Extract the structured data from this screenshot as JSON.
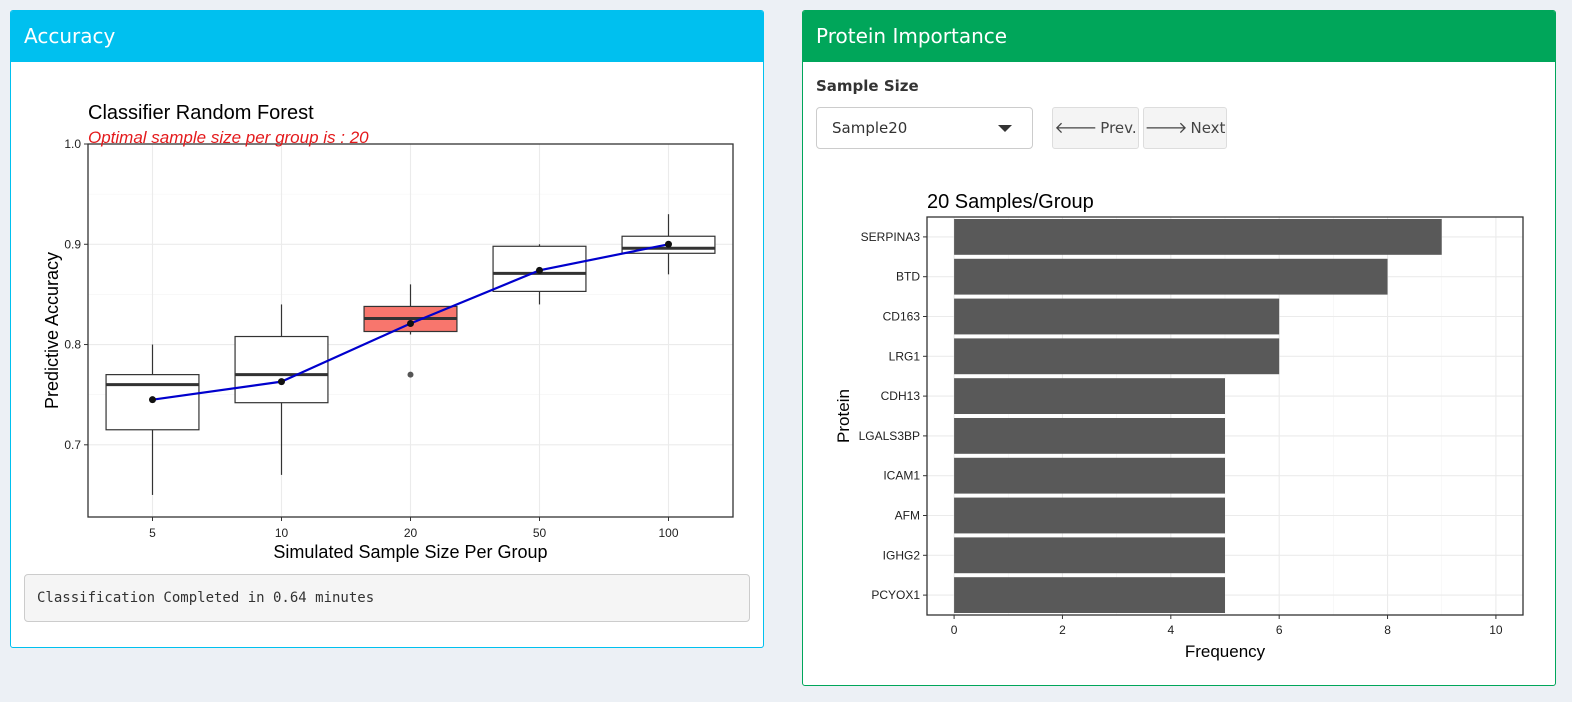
{
  "accuracy_box": {
    "title": "Accuracy",
    "verbatim_output": "Classification Completed in 0.64 minutes"
  },
  "protein_box": {
    "title": "Protein Importance",
    "sample_size_label": "Sample Size",
    "sample_size_selected": "Sample20",
    "prev_label": "Prev.",
    "next_label": "Next",
    "prev_icon": "arrow-left-icon",
    "next_icon": "arrow-right-icon"
  },
  "colors": {
    "accuracy_header": "#00c0ef",
    "protein_header": "#00a65a",
    "optimal_box_fill": "#f8766d",
    "mean_line": "#0000cd",
    "bar_fill": "#595959",
    "subtitle": "#e41a1c"
  },
  "chart_data": [
    {
      "type": "boxplot",
      "title": "Classifier Random Forest",
      "subtitle": "Optimal sample size per group is : 20",
      "xlabel": "Simulated Sample Size Per Group",
      "ylabel": "Predictive Accuracy",
      "categories": [
        "5",
        "10",
        "20",
        "50",
        "100"
      ],
      "yticks": [
        "0.7",
        "0.8",
        "0.9",
        "1.0"
      ],
      "ylim": [
        0.628,
        1.0
      ],
      "grid": true,
      "highlight_category": "20",
      "boxes": [
        {
          "min": 0.65,
          "q1": 0.715,
          "median": 0.76,
          "q3": 0.77,
          "max": 0.8
        },
        {
          "min": 0.67,
          "q1": 0.742,
          "median": 0.77,
          "q3": 0.808,
          "max": 0.84
        },
        {
          "min": 0.81,
          "q1": 0.813,
          "median": 0.826,
          "q3": 0.838,
          "max": 0.86,
          "outliers": [
            0.77
          ]
        },
        {
          "min": 0.84,
          "q1": 0.853,
          "median": 0.871,
          "q3": 0.898,
          "max": 0.9
        },
        {
          "min": 0.87,
          "q1": 0.891,
          "median": 0.896,
          "q3": 0.908,
          "max": 0.93
        }
      ],
      "mean_line": {
        "values": [
          0.745,
          0.763,
          0.821,
          0.874,
          0.9
        ]
      }
    },
    {
      "type": "bar",
      "orientation": "horizontal",
      "title": "20 Samples/Group",
      "xlabel": "Frequency",
      "ylabel": "Protein",
      "categories": [
        "SERPINA3",
        "BTD",
        "CD163",
        "LRG1",
        "CDH13",
        "LGALS3BP",
        "ICAM1",
        "AFM",
        "IGHG2",
        "PCYOX1"
      ],
      "values": [
        9,
        8,
        6,
        6,
        5,
        5,
        5,
        5,
        5,
        5
      ],
      "xticks": [
        "0",
        "2",
        "4",
        "6",
        "8",
        "10"
      ],
      "xlim": [
        -0.5,
        10.5
      ],
      "grid": true
    }
  ]
}
